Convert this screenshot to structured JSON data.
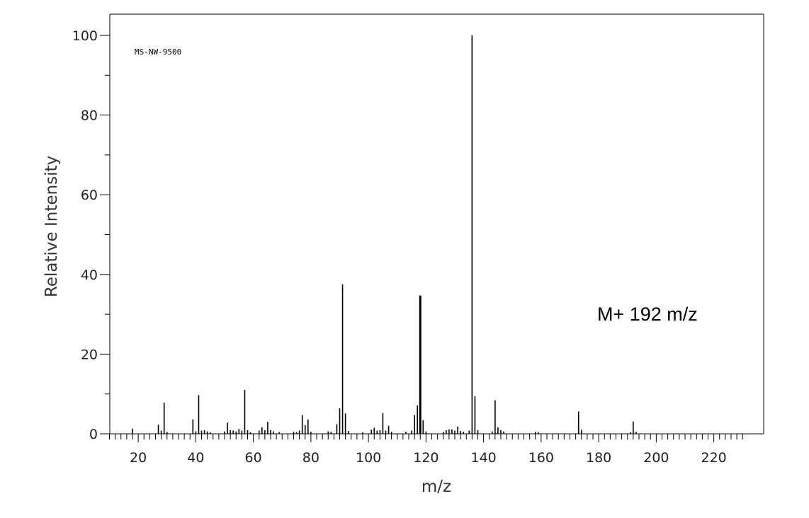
{
  "chart_data": {
    "type": "bar",
    "title": "",
    "xlabel": "m/z",
    "ylabel": "Relative Intensity",
    "xlim": [
      10,
      230
    ],
    "ylim": [
      0,
      100
    ],
    "xticks": [
      20,
      40,
      60,
      80,
      100,
      120,
      140,
      160,
      180,
      200,
      220
    ],
    "yticks": [
      0,
      20,
      40,
      60,
      80,
      100
    ],
    "grid": false,
    "annotations": {
      "source_code": "MS-NW-9500",
      "molecular_ion": "M+ 192 m/z"
    },
    "colors": {
      "bars": "#000000",
      "frame": "#000000",
      "background": "#ffffff"
    },
    "series": [
      {
        "x": [
          18,
          27,
          28,
          29,
          30,
          39,
          40,
          41,
          42,
          43,
          44,
          45,
          50,
          51,
          52,
          53,
          54,
          55,
          56,
          57,
          58,
          59,
          62,
          63,
          64,
          65,
          66,
          67,
          69,
          74,
          75,
          76,
          77,
          78,
          79,
          80,
          86,
          87,
          89,
          90,
          91,
          92,
          93,
          98,
          101,
          102,
          103,
          104,
          105,
          106,
          107,
          108,
          113,
          115,
          116,
          117,
          118,
          119,
          120,
          126,
          127,
          128,
          129,
          130,
          131,
          132,
          133,
          135,
          136,
          137,
          138,
          143,
          144,
          145,
          146,
          147,
          158,
          159,
          173,
          174,
          191,
          192,
          193
        ],
        "values": [
          1.3,
          2.3,
          0.8,
          7.8,
          0.5,
          3.6,
          0.6,
          9.7,
          0.8,
          0.9,
          0.6,
          0.4,
          0.6,
          2.8,
          0.9,
          0.8,
          0.6,
          1.2,
          0.8,
          11.0,
          0.9,
          0.4,
          0.8,
          1.6,
          0.9,
          3.0,
          0.9,
          0.6,
          0.4,
          0.5,
          0.4,
          0.8,
          4.7,
          2.2,
          3.6,
          0.5,
          0.6,
          0.5,
          2.4,
          6.4,
          37.5,
          5.1,
          0.7,
          0.4,
          1.0,
          1.5,
          0.8,
          0.9,
          5.2,
          0.8,
          2.0,
          0.5,
          0.5,
          0.8,
          4.7,
          7.1,
          34.7,
          3.4,
          0.6,
          0.5,
          0.9,
          1.1,
          1.1,
          0.8,
          1.8,
          0.7,
          0.5,
          0.8,
          100,
          9.4,
          0.9,
          0.6,
          8.4,
          1.6,
          0.9,
          0.6,
          0.5,
          0.4,
          5.6,
          1.0,
          0.4,
          3.1,
          0.5
        ]
      }
    ]
  }
}
